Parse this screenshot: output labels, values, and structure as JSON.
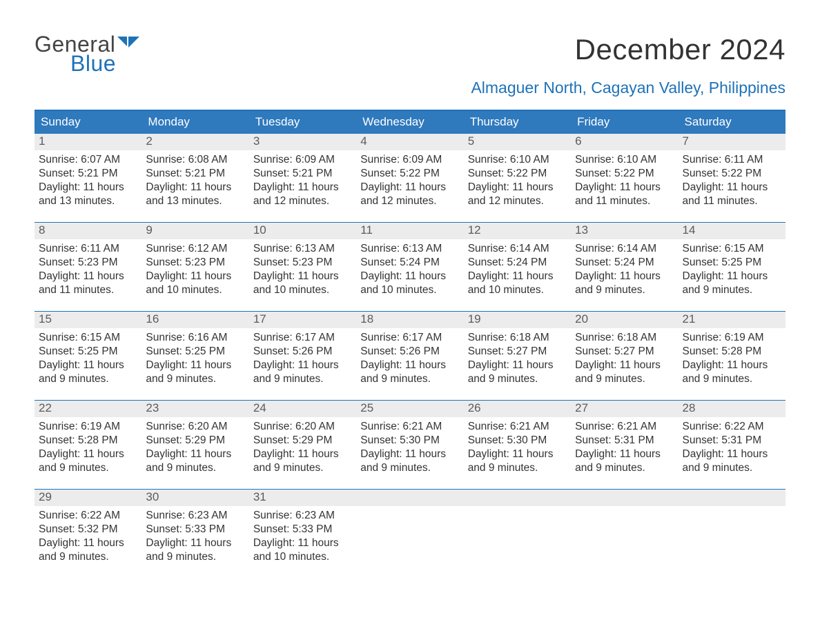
{
  "logo": {
    "word1": "General",
    "word2": "Blue",
    "word1_color": "#444444",
    "word2_color": "#1e72b8"
  },
  "title": "December 2024",
  "location": "Almaguer North, Cagayan Valley, Philippines",
  "colors": {
    "header_bg": "#2f79bd",
    "header_text": "#ffffff",
    "border": "#1e72b8",
    "daynum_bg": "#ececec",
    "daynum_text": "#5b5b5b",
    "body_text": "#333333",
    "background": "#ffffff"
  },
  "type": "table",
  "weekdays": [
    "Sunday",
    "Monday",
    "Tuesday",
    "Wednesday",
    "Thursday",
    "Friday",
    "Saturday"
  ],
  "weeks": [
    [
      {
        "n": "1",
        "sunrise": "Sunrise: 6:07 AM",
        "sunset": "Sunset: 5:21 PM",
        "d1": "Daylight: 11 hours",
        "d2": "and 13 minutes."
      },
      {
        "n": "2",
        "sunrise": "Sunrise: 6:08 AM",
        "sunset": "Sunset: 5:21 PM",
        "d1": "Daylight: 11 hours",
        "d2": "and 13 minutes."
      },
      {
        "n": "3",
        "sunrise": "Sunrise: 6:09 AM",
        "sunset": "Sunset: 5:21 PM",
        "d1": "Daylight: 11 hours",
        "d2": "and 12 minutes."
      },
      {
        "n": "4",
        "sunrise": "Sunrise: 6:09 AM",
        "sunset": "Sunset: 5:22 PM",
        "d1": "Daylight: 11 hours",
        "d2": "and 12 minutes."
      },
      {
        "n": "5",
        "sunrise": "Sunrise: 6:10 AM",
        "sunset": "Sunset: 5:22 PM",
        "d1": "Daylight: 11 hours",
        "d2": "and 12 minutes."
      },
      {
        "n": "6",
        "sunrise": "Sunrise: 6:10 AM",
        "sunset": "Sunset: 5:22 PM",
        "d1": "Daylight: 11 hours",
        "d2": "and 11 minutes."
      },
      {
        "n": "7",
        "sunrise": "Sunrise: 6:11 AM",
        "sunset": "Sunset: 5:22 PM",
        "d1": "Daylight: 11 hours",
        "d2": "and 11 minutes."
      }
    ],
    [
      {
        "n": "8",
        "sunrise": "Sunrise: 6:11 AM",
        "sunset": "Sunset: 5:23 PM",
        "d1": "Daylight: 11 hours",
        "d2": "and 11 minutes."
      },
      {
        "n": "9",
        "sunrise": "Sunrise: 6:12 AM",
        "sunset": "Sunset: 5:23 PM",
        "d1": "Daylight: 11 hours",
        "d2": "and 10 minutes."
      },
      {
        "n": "10",
        "sunrise": "Sunrise: 6:13 AM",
        "sunset": "Sunset: 5:23 PM",
        "d1": "Daylight: 11 hours",
        "d2": "and 10 minutes."
      },
      {
        "n": "11",
        "sunrise": "Sunrise: 6:13 AM",
        "sunset": "Sunset: 5:24 PM",
        "d1": "Daylight: 11 hours",
        "d2": "and 10 minutes."
      },
      {
        "n": "12",
        "sunrise": "Sunrise: 6:14 AM",
        "sunset": "Sunset: 5:24 PM",
        "d1": "Daylight: 11 hours",
        "d2": "and 10 minutes."
      },
      {
        "n": "13",
        "sunrise": "Sunrise: 6:14 AM",
        "sunset": "Sunset: 5:24 PM",
        "d1": "Daylight: 11 hours",
        "d2": "and 9 minutes."
      },
      {
        "n": "14",
        "sunrise": "Sunrise: 6:15 AM",
        "sunset": "Sunset: 5:25 PM",
        "d1": "Daylight: 11 hours",
        "d2": "and 9 minutes."
      }
    ],
    [
      {
        "n": "15",
        "sunrise": "Sunrise: 6:15 AM",
        "sunset": "Sunset: 5:25 PM",
        "d1": "Daylight: 11 hours",
        "d2": "and 9 minutes."
      },
      {
        "n": "16",
        "sunrise": "Sunrise: 6:16 AM",
        "sunset": "Sunset: 5:25 PM",
        "d1": "Daylight: 11 hours",
        "d2": "and 9 minutes."
      },
      {
        "n": "17",
        "sunrise": "Sunrise: 6:17 AM",
        "sunset": "Sunset: 5:26 PM",
        "d1": "Daylight: 11 hours",
        "d2": "and 9 minutes."
      },
      {
        "n": "18",
        "sunrise": "Sunrise: 6:17 AM",
        "sunset": "Sunset: 5:26 PM",
        "d1": "Daylight: 11 hours",
        "d2": "and 9 minutes."
      },
      {
        "n": "19",
        "sunrise": "Sunrise: 6:18 AM",
        "sunset": "Sunset: 5:27 PM",
        "d1": "Daylight: 11 hours",
        "d2": "and 9 minutes."
      },
      {
        "n": "20",
        "sunrise": "Sunrise: 6:18 AM",
        "sunset": "Sunset: 5:27 PM",
        "d1": "Daylight: 11 hours",
        "d2": "and 9 minutes."
      },
      {
        "n": "21",
        "sunrise": "Sunrise: 6:19 AM",
        "sunset": "Sunset: 5:28 PM",
        "d1": "Daylight: 11 hours",
        "d2": "and 9 minutes."
      }
    ],
    [
      {
        "n": "22",
        "sunrise": "Sunrise: 6:19 AM",
        "sunset": "Sunset: 5:28 PM",
        "d1": "Daylight: 11 hours",
        "d2": "and 9 minutes."
      },
      {
        "n": "23",
        "sunrise": "Sunrise: 6:20 AM",
        "sunset": "Sunset: 5:29 PM",
        "d1": "Daylight: 11 hours",
        "d2": "and 9 minutes."
      },
      {
        "n": "24",
        "sunrise": "Sunrise: 6:20 AM",
        "sunset": "Sunset: 5:29 PM",
        "d1": "Daylight: 11 hours",
        "d2": "and 9 minutes."
      },
      {
        "n": "25",
        "sunrise": "Sunrise: 6:21 AM",
        "sunset": "Sunset: 5:30 PM",
        "d1": "Daylight: 11 hours",
        "d2": "and 9 minutes."
      },
      {
        "n": "26",
        "sunrise": "Sunrise: 6:21 AM",
        "sunset": "Sunset: 5:30 PM",
        "d1": "Daylight: 11 hours",
        "d2": "and 9 minutes."
      },
      {
        "n": "27",
        "sunrise": "Sunrise: 6:21 AM",
        "sunset": "Sunset: 5:31 PM",
        "d1": "Daylight: 11 hours",
        "d2": "and 9 minutes."
      },
      {
        "n": "28",
        "sunrise": "Sunrise: 6:22 AM",
        "sunset": "Sunset: 5:31 PM",
        "d1": "Daylight: 11 hours",
        "d2": "and 9 minutes."
      }
    ],
    [
      {
        "n": "29",
        "sunrise": "Sunrise: 6:22 AM",
        "sunset": "Sunset: 5:32 PM",
        "d1": "Daylight: 11 hours",
        "d2": "and 9 minutes."
      },
      {
        "n": "30",
        "sunrise": "Sunrise: 6:23 AM",
        "sunset": "Sunset: 5:33 PM",
        "d1": "Daylight: 11 hours",
        "d2": "and 9 minutes."
      },
      {
        "n": "31",
        "sunrise": "Sunrise: 6:23 AM",
        "sunset": "Sunset: 5:33 PM",
        "d1": "Daylight: 11 hours",
        "d2": "and 10 minutes."
      },
      {
        "empty": true
      },
      {
        "empty": true
      },
      {
        "empty": true
      },
      {
        "empty": true
      }
    ]
  ]
}
